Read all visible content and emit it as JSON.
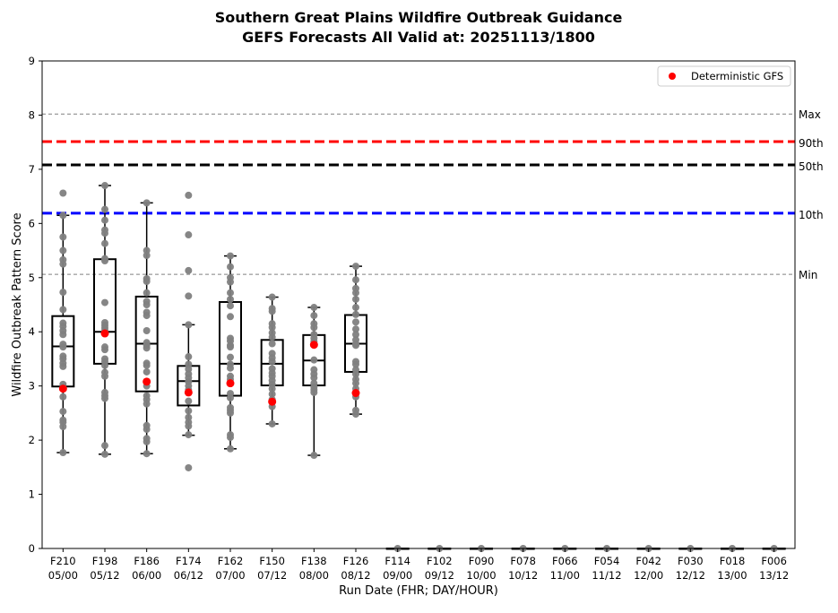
{
  "chart_data": {
    "type": "box",
    "title": [
      "Southern Great Plains Wildfire Outbreak Guidance",
      "GEFS Forecasts All Valid at: 20251113/1800"
    ],
    "xlabel": "Run Date (FHR; DAY/HOUR)",
    "ylabel": "Wildfire Outbreak Pattern Score",
    "ylim": [
      0,
      9
    ],
    "yticks": [
      "0",
      "1",
      "2",
      "3",
      "4",
      "5",
      "6",
      "7",
      "8",
      "9"
    ],
    "legend": {
      "label": "Deterministic GFS",
      "placement": "top-right",
      "color": "#ff0000"
    },
    "categories": [
      [
        "F210",
        "05/00"
      ],
      [
        "F198",
        "05/12"
      ],
      [
        "F186",
        "06/00"
      ],
      [
        "F174",
        "06/12"
      ],
      [
        "F162",
        "07/00"
      ],
      [
        "F150",
        "07/12"
      ],
      [
        "F138",
        "08/00"
      ],
      [
        "F126",
        "08/12"
      ],
      [
        "F114",
        "09/00"
      ],
      [
        "F102",
        "09/12"
      ],
      [
        "F090",
        "10/00"
      ],
      [
        "F078",
        "10/12"
      ],
      [
        "F066",
        "11/00"
      ],
      [
        "F054",
        "11/12"
      ],
      [
        "F042",
        "12/00"
      ],
      [
        "F030",
        "12/12"
      ],
      [
        "F018",
        "13/00"
      ],
      [
        "F006",
        "13/12"
      ]
    ],
    "boxes": [
      {
        "low": 1.77,
        "q1": 2.99,
        "median": 3.73,
        "q3": 4.29,
        "high": 6.15,
        "det": 2.95,
        "points": [
          6.56,
          6.15,
          5.75,
          5.5,
          5.33,
          5.25,
          4.73,
          4.41,
          4.16,
          4.1,
          4.02,
          3.95,
          3.77,
          3.72,
          3.55,
          3.5,
          3.42,
          3.36,
          3.03,
          2.97,
          2.8,
          2.53,
          2.37,
          2.33,
          2.25,
          1.77
        ]
      },
      {
        "low": 1.74,
        "q1": 3.41,
        "median": 4.0,
        "q3": 5.34,
        "high": 6.7,
        "det": 3.97,
        "points": [
          6.7,
          6.26,
          6.06,
          5.88,
          5.82,
          5.63,
          5.35,
          5.31,
          4.54,
          4.17,
          4.12,
          4.07,
          4.02,
          3.72,
          3.67,
          3.5,
          3.45,
          3.38,
          3.25,
          3.18,
          2.88,
          2.82,
          2.77,
          1.9,
          1.74
        ]
      },
      {
        "low": 1.75,
        "q1": 2.9,
        "median": 3.78,
        "q3": 4.65,
        "high": 6.38,
        "det": 3.08,
        "points": [
          6.38,
          5.5,
          5.41,
          4.98,
          4.93,
          4.72,
          4.56,
          4.5,
          4.36,
          4.3,
          4.02,
          3.8,
          3.75,
          3.7,
          3.42,
          3.38,
          3.26,
          3.0,
          2.82,
          2.75,
          2.67,
          2.27,
          2.2,
          2.03,
          1.97,
          1.75
        ]
      },
      {
        "low": 2.09,
        "q1": 2.64,
        "median": 3.09,
        "q3": 3.37,
        "high": 4.13,
        "det": 2.88,
        "points": [
          6.52,
          5.79,
          5.13,
          4.66,
          4.13,
          3.54,
          3.4,
          3.31,
          3.22,
          3.15,
          3.08,
          3.0,
          2.93,
          2.72,
          2.54,
          2.42,
          2.33,
          2.26,
          2.1,
          1.49
        ]
      },
      {
        "low": 1.84,
        "q1": 2.82,
        "median": 3.41,
        "q3": 4.55,
        "high": 5.4,
        "det": 3.05,
        "points": [
          5.4,
          5.2,
          5.0,
          4.92,
          4.72,
          4.6,
          4.48,
          4.28,
          3.88,
          3.83,
          3.75,
          3.72,
          3.53,
          3.4,
          3.33,
          3.18,
          3.12,
          2.86,
          2.78,
          2.6,
          2.55,
          2.5,
          2.1,
          2.05,
          1.84
        ]
      },
      {
        "low": 2.3,
        "q1": 3.01,
        "median": 3.41,
        "q3": 3.85,
        "high": 4.64,
        "det": 2.71,
        "points": [
          4.64,
          4.43,
          4.38,
          4.15,
          4.08,
          3.98,
          3.9,
          3.78,
          3.6,
          3.52,
          3.45,
          3.32,
          3.24,
          3.18,
          3.1,
          3.03,
          2.95,
          2.85,
          2.75,
          2.62,
          2.3
        ]
      },
      {
        "low": 1.72,
        "q1": 3.01,
        "median": 3.47,
        "q3": 3.94,
        "high": 4.45,
        "det": 3.76,
        "points": [
          4.45,
          4.3,
          4.15,
          4.08,
          3.95,
          3.88,
          3.82,
          3.48,
          3.3,
          3.22,
          3.15,
          3.05,
          2.98,
          2.93,
          2.88,
          1.72
        ]
      },
      {
        "low": 2.48,
        "q1": 3.26,
        "median": 3.78,
        "q3": 4.31,
        "high": 5.21,
        "det": 2.87,
        "points": [
          5.21,
          4.96,
          4.8,
          4.72,
          4.6,
          4.45,
          4.32,
          4.18,
          4.05,
          3.95,
          3.85,
          3.78,
          3.75,
          3.45,
          3.4,
          3.3,
          3.22,
          3.12,
          3.05,
          2.95,
          2.8,
          2.55,
          2.48
        ]
      },
      {
        "low": 0,
        "q1": 0,
        "median": 0,
        "q3": 0,
        "high": 0,
        "det": null,
        "points": [
          0
        ]
      },
      {
        "low": 0,
        "q1": 0,
        "median": 0,
        "q3": 0,
        "high": 0,
        "det": null,
        "points": [
          0
        ]
      },
      {
        "low": 0,
        "q1": 0,
        "median": 0,
        "q3": 0,
        "high": 0,
        "det": null,
        "points": [
          0
        ]
      },
      {
        "low": 0,
        "q1": 0,
        "median": 0,
        "q3": 0,
        "high": 0,
        "det": null,
        "points": [
          0
        ]
      },
      {
        "low": 0,
        "q1": 0,
        "median": 0,
        "q3": 0,
        "high": 0,
        "det": null,
        "points": [
          0
        ]
      },
      {
        "low": 0,
        "q1": 0,
        "median": 0,
        "q3": 0,
        "high": 0,
        "det": null,
        "points": [
          0
        ]
      },
      {
        "low": 0,
        "q1": 0,
        "median": 0,
        "q3": 0,
        "high": 0,
        "det": null,
        "points": [
          0
        ]
      },
      {
        "low": 0,
        "q1": 0,
        "median": 0,
        "q3": 0,
        "high": 0,
        "det": null,
        "points": [
          0
        ]
      },
      {
        "low": 0,
        "q1": 0,
        "median": 0,
        "q3": 0,
        "high": 0,
        "det": null,
        "points": [
          0
        ]
      },
      {
        "low": 0,
        "q1": 0,
        "median": 0,
        "q3": 0,
        "high": 0,
        "det": null,
        "points": [
          0
        ]
      }
    ],
    "reference_lines": [
      {
        "label": "Max",
        "value": 8.02,
        "color": "#808080",
        "style": "thin"
      },
      {
        "label": "90th",
        "value": 7.51,
        "color": "#ff0000",
        "style": "thick"
      },
      {
        "label": "50th",
        "value": 7.08,
        "color": "#000000",
        "style": "thick"
      },
      {
        "label": "10th",
        "value": 6.19,
        "color": "#0000ff",
        "style": "thick"
      },
      {
        "label": "Min",
        "value": 5.06,
        "color": "#808080",
        "style": "thin"
      }
    ],
    "point_color": "#808080"
  }
}
